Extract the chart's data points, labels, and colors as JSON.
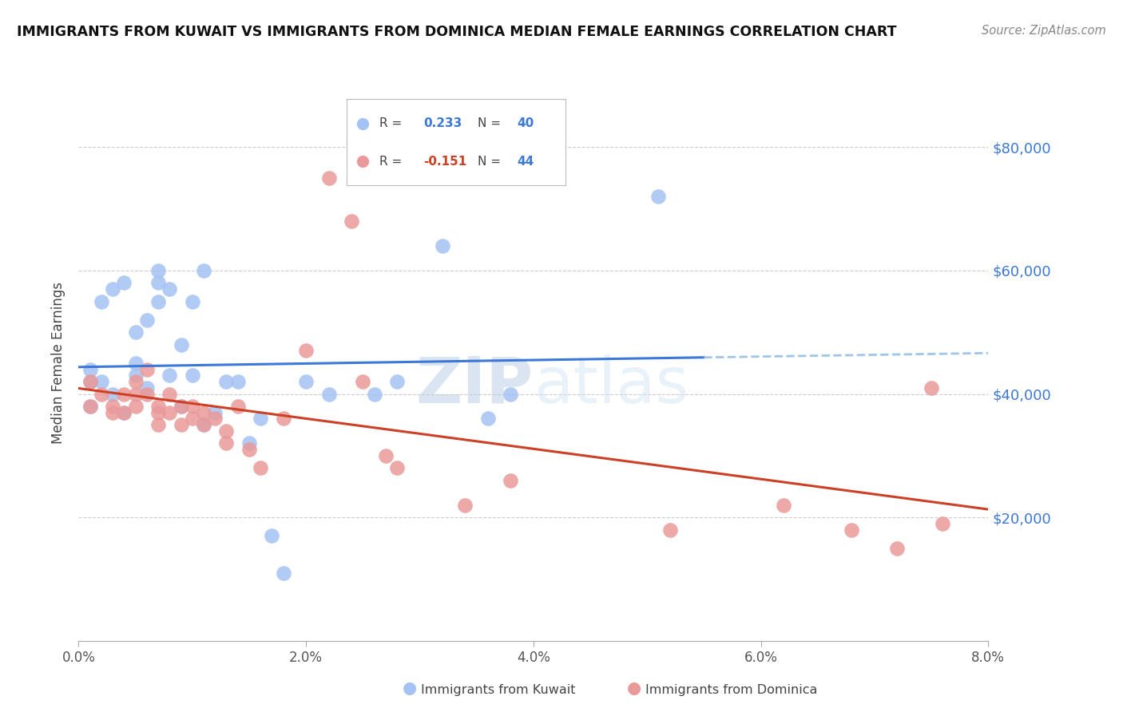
{
  "title": "IMMIGRANTS FROM KUWAIT VS IMMIGRANTS FROM DOMINICA MEDIAN FEMALE EARNINGS CORRELATION CHART",
  "source": "Source: ZipAtlas.com",
  "ylabel": "Median Female Earnings",
  "x_min": 0.0,
  "x_max": 0.08,
  "y_min": 0,
  "y_max": 90000,
  "y_ticks": [
    20000,
    40000,
    60000,
    80000
  ],
  "y_tick_labels": [
    "$20,000",
    "$40,000",
    "$60,000",
    "$80,000"
  ],
  "x_tick_labels": [
    "0.0%",
    "2.0%",
    "4.0%",
    "6.0%",
    "8.0%"
  ],
  "x_ticks": [
    0.0,
    0.02,
    0.04,
    0.06,
    0.08
  ],
  "color_kuwait": "#a4c2f4",
  "color_dominica": "#ea9999",
  "color_line_kuwait": "#3c78d8",
  "color_line_dominica": "#cc4125",
  "color_line_dashed": "#9fc5e8",
  "color_axis_labels": "#3c78d8",
  "color_R_dominica": "#cc4125",
  "background_color": "#ffffff",
  "watermark_zip": "ZIP",
  "watermark_atlas": "atlas",
  "kuwait_x": [
    0.001,
    0.001,
    0.001,
    0.002,
    0.002,
    0.003,
    0.003,
    0.004,
    0.004,
    0.005,
    0.005,
    0.005,
    0.006,
    0.006,
    0.007,
    0.007,
    0.007,
    0.008,
    0.008,
    0.009,
    0.009,
    0.01,
    0.01,
    0.011,
    0.011,
    0.012,
    0.013,
    0.014,
    0.015,
    0.016,
    0.017,
    0.018,
    0.02,
    0.022,
    0.026,
    0.028,
    0.032,
    0.036,
    0.038,
    0.051
  ],
  "kuwait_y": [
    42000,
    44000,
    38000,
    42000,
    55000,
    40000,
    57000,
    37000,
    58000,
    43000,
    45000,
    50000,
    41000,
    52000,
    58000,
    60000,
    55000,
    43000,
    57000,
    48000,
    38000,
    43000,
    55000,
    35000,
    60000,
    37000,
    42000,
    42000,
    32000,
    36000,
    17000,
    11000,
    42000,
    40000,
    40000,
    42000,
    64000,
    36000,
    40000,
    72000
  ],
  "dominica_x": [
    0.001,
    0.001,
    0.002,
    0.003,
    0.003,
    0.004,
    0.004,
    0.005,
    0.005,
    0.005,
    0.006,
    0.006,
    0.007,
    0.007,
    0.007,
    0.008,
    0.008,
    0.009,
    0.009,
    0.01,
    0.01,
    0.011,
    0.011,
    0.012,
    0.013,
    0.013,
    0.014,
    0.015,
    0.016,
    0.018,
    0.02,
    0.022,
    0.024,
    0.025,
    0.027,
    0.028,
    0.034,
    0.038,
    0.052,
    0.062,
    0.068,
    0.072,
    0.075,
    0.076
  ],
  "dominica_y": [
    42000,
    38000,
    40000,
    37000,
    38000,
    40000,
    37000,
    40000,
    42000,
    38000,
    40000,
    44000,
    35000,
    37000,
    38000,
    37000,
    40000,
    35000,
    38000,
    38000,
    36000,
    35000,
    37000,
    36000,
    34000,
    32000,
    38000,
    31000,
    28000,
    36000,
    47000,
    75000,
    68000,
    42000,
    30000,
    28000,
    22000,
    26000,
    18000,
    22000,
    18000,
    15000,
    41000,
    19000
  ]
}
